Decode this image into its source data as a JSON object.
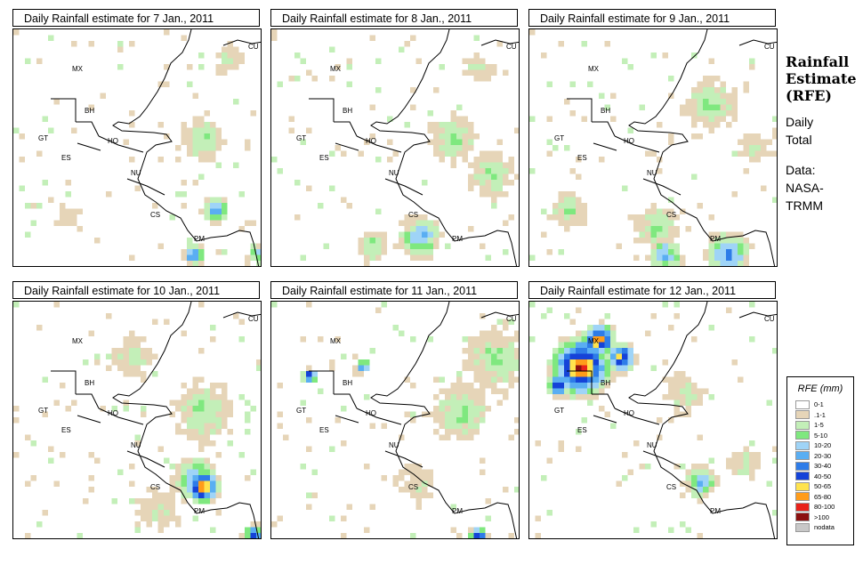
{
  "panels": [
    {
      "title": "Daily Rainfall estimate for  7 Jan., 2011",
      "day": 7
    },
    {
      "title": "Daily Rainfall estimate for  8 Jan., 2011",
      "day": 8
    },
    {
      "title": "Daily Rainfall estimate for  9 Jan., 2011",
      "day": 9
    },
    {
      "title": "Daily Rainfall estimate for  10 Jan., 2011",
      "day": 10
    },
    {
      "title": "Daily Rainfall estimate for  11 Jan., 2011",
      "day": 11
    },
    {
      "title": "Daily Rainfall estimate for  12 Jan., 2011",
      "day": 12
    }
  ],
  "country_labels": [
    "MX",
    "CU",
    "BH",
    "GT",
    "HO",
    "ES",
    "NU",
    "CS",
    "PM"
  ],
  "side": {
    "title_line1": "Rainfall",
    "title_line2": "Estimate",
    "title_line3": "(RFE)",
    "daily": "Daily",
    "total": "Total",
    "data_label": "Data:",
    "nasa": "NASA-",
    "trmm": "TRMM"
  },
  "legend": {
    "title": "RFE (mm)",
    "items": [
      {
        "label": "0-1",
        "color": "#ffffff"
      },
      {
        "label": ".1-1",
        "color": "#e6d5b8"
      },
      {
        "label": "1-5",
        "color": "#c3efb8"
      },
      {
        "label": "5-10",
        "color": "#7fe87f"
      },
      {
        "label": "10-20",
        "color": "#9fd4f7"
      },
      {
        "label": "20-30",
        "color": "#5aaef2"
      },
      {
        "label": "30-40",
        "color": "#2e7ce8"
      },
      {
        "label": "40-50",
        "color": "#1543d8"
      },
      {
        "label": "50-65",
        "color": "#ffe34d"
      },
      {
        "label": "65-80",
        "color": "#ff9c1a"
      },
      {
        "label": "80-100",
        "color": "#e8221a"
      },
      {
        "label": ">100",
        "color": "#8b1010"
      },
      {
        "label": "nodata",
        "color": "#c8c8c8"
      }
    ]
  }
}
